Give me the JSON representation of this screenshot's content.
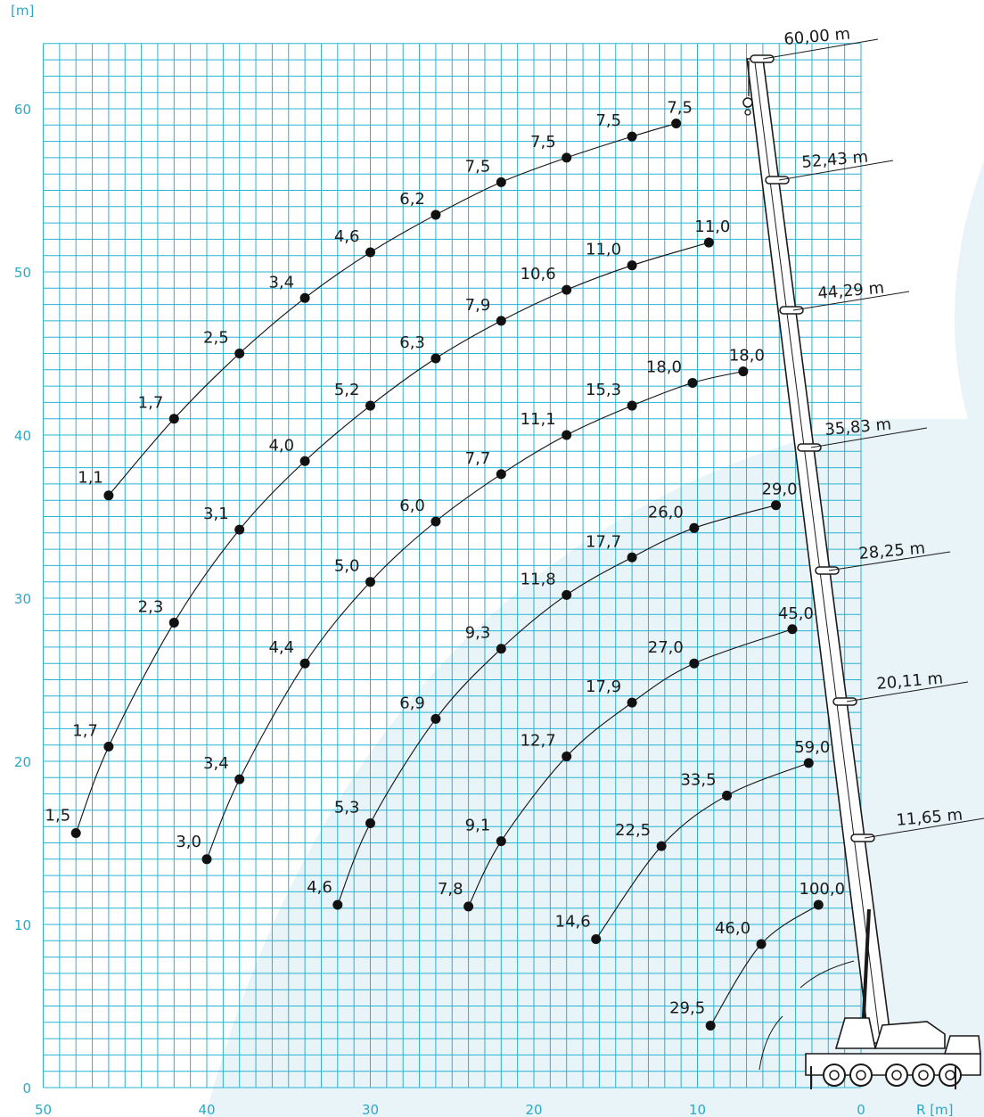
{
  "chart_data": {
    "type": "scatter",
    "title": "",
    "xlabel": "R [m]",
    "ylabel": "[m]",
    "xlim": [
      50,
      0
    ],
    "ylim": [
      0,
      64
    ],
    "x_ticks": [
      50,
      40,
      30,
      20,
      10,
      0
    ],
    "y_ticks": [
      0,
      10,
      20,
      30,
      40,
      50,
      60
    ],
    "grid": true,
    "colors": {
      "grid": "#27b3d3",
      "axis_text": "#2aa9c8",
      "marks": "#111111",
      "background_shape": "#e6f3f8"
    },
    "boom_lengths": [
      "60,00 m",
      "52,43 m",
      "44,29 m",
      "35,83 m",
      "28,25 m",
      "20,11 m",
      "11,65 m"
    ],
    "series": [
      {
        "name": "60,00 m",
        "points": [
          {
            "r": 46,
            "h": 36.3,
            "label": "1,1"
          },
          {
            "r": 42,
            "h": 41.0,
            "label": "1,7"
          },
          {
            "r": 38,
            "h": 45.0,
            "label": "2,5"
          },
          {
            "r": 34,
            "h": 48.4,
            "label": "3,4"
          },
          {
            "r": 30,
            "h": 51.2,
            "label": "4,6"
          },
          {
            "r": 26,
            "h": 53.5,
            "label": "6,2"
          },
          {
            "r": 22,
            "h": 55.5,
            "label": "7,5"
          },
          {
            "r": 18,
            "h": 57.0,
            "label": "7,5"
          },
          {
            "r": 14,
            "h": 58.3,
            "label": "7,5"
          },
          {
            "r": 11.3,
            "h": 59.1,
            "label": "7,5"
          }
        ]
      },
      {
        "name": "52,43 m",
        "points": [
          {
            "r": 48,
            "h": 15.6,
            "label": "1,5"
          },
          {
            "r": 46,
            "h": 20.9,
            "label": "1,7"
          },
          {
            "r": 42,
            "h": 28.5,
            "label": "2,3"
          },
          {
            "r": 38,
            "h": 34.2,
            "label": "3,1"
          },
          {
            "r": 34,
            "h": 38.4,
            "label": "4,0"
          },
          {
            "r": 30,
            "h": 41.8,
            "label": "5,2"
          },
          {
            "r": 26,
            "h": 44.7,
            "label": "6,3"
          },
          {
            "r": 22,
            "h": 47.0,
            "label": "7,9"
          },
          {
            "r": 18,
            "h": 48.9,
            "label": "10,6"
          },
          {
            "r": 14,
            "h": 50.4,
            "label": "11,0"
          },
          {
            "r": 9.3,
            "h": 51.8,
            "label": "11,0"
          }
        ]
      },
      {
        "name": "44,29 m",
        "points": [
          {
            "r": 40,
            "h": 14.0,
            "label": "3,0"
          },
          {
            "r": 38,
            "h": 18.9,
            "label": "3,4"
          },
          {
            "r": 34,
            "h": 26.0,
            "label": "4,4"
          },
          {
            "r": 30,
            "h": 31.0,
            "label": "5,0"
          },
          {
            "r": 26,
            "h": 34.7,
            "label": "6,0"
          },
          {
            "r": 22,
            "h": 37.6,
            "label": "7,7"
          },
          {
            "r": 18,
            "h": 40.0,
            "label": "11,1"
          },
          {
            "r": 14,
            "h": 41.8,
            "label": "15,3"
          },
          {
            "r": 10.3,
            "h": 43.2,
            "label": "18,0"
          },
          {
            "r": 7.2,
            "h": 43.9,
            "label": "18,0"
          }
        ]
      },
      {
        "name": "35,83 m",
        "points": [
          {
            "r": 32,
            "h": 11.2,
            "label": "4,6"
          },
          {
            "r": 30,
            "h": 16.2,
            "label": "5,3"
          },
          {
            "r": 26,
            "h": 22.6,
            "label": "6,9"
          },
          {
            "r": 22,
            "h": 26.9,
            "label": "9,3"
          },
          {
            "r": 18,
            "h": 30.2,
            "label": "11,8"
          },
          {
            "r": 14,
            "h": 32.5,
            "label": "17,7"
          },
          {
            "r": 10.2,
            "h": 34.3,
            "label": "26,0"
          },
          {
            "r": 5.2,
            "h": 35.7,
            "label": "29,0"
          }
        ]
      },
      {
        "name": "28,25 m",
        "points": [
          {
            "r": 24,
            "h": 11.1,
            "label": "7,8"
          },
          {
            "r": 22,
            "h": 15.1,
            "label": "9,1"
          },
          {
            "r": 18,
            "h": 20.3,
            "label": "12,7"
          },
          {
            "r": 14,
            "h": 23.6,
            "label": "17,9"
          },
          {
            "r": 10.2,
            "h": 26.0,
            "label": "27,0"
          },
          {
            "r": 4.2,
            "h": 28.1,
            "label": "45,0"
          }
        ]
      },
      {
        "name": "20,11 m",
        "points": [
          {
            "r": 16.2,
            "h": 9.1,
            "label": "14,6"
          },
          {
            "r": 12.2,
            "h": 14.8,
            "label": "22,5"
          },
          {
            "r": 8.2,
            "h": 17.9,
            "label": "33,5"
          },
          {
            "r": 3.2,
            "h": 19.9,
            "label": "59,0"
          }
        ]
      },
      {
        "name": "11,65 m",
        "points": [
          {
            "r": 9.2,
            "h": 3.8,
            "label": "29,5"
          },
          {
            "r": 6.1,
            "h": 8.8,
            "label": "46,0"
          },
          {
            "r": 2.6,
            "h": 11.2,
            "label": "100,0"
          }
        ]
      }
    ]
  }
}
